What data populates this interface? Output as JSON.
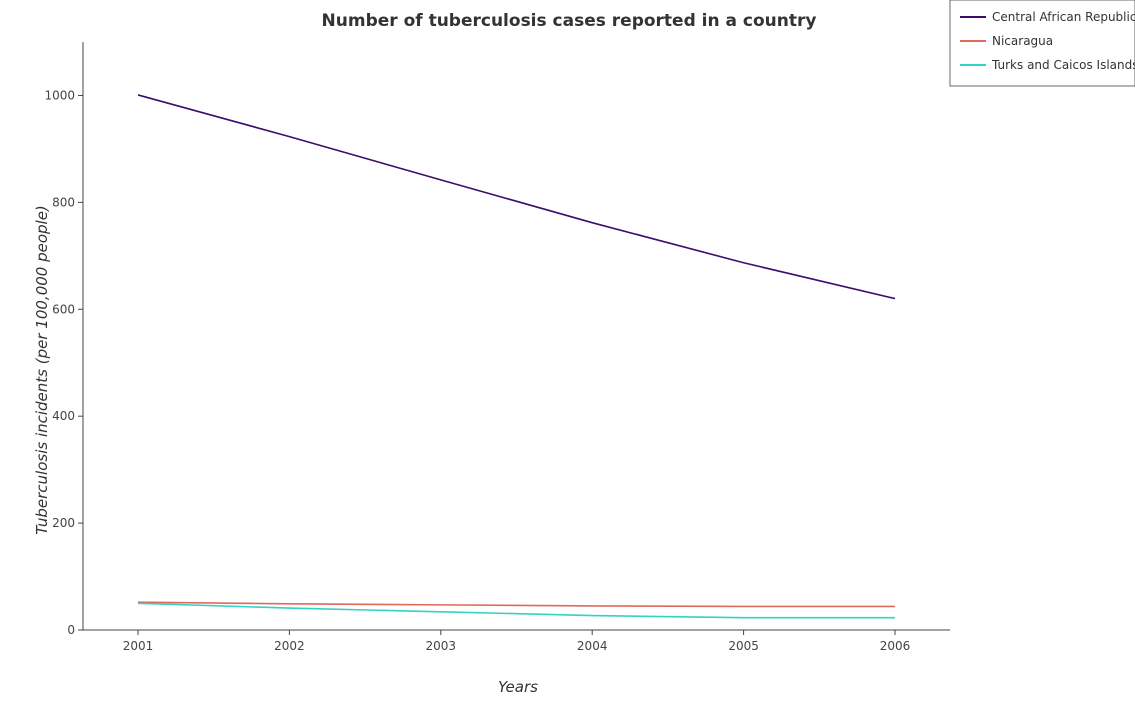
{
  "chart_data": {
    "type": "line",
    "title": "Number of tuberculosis cases reported in a country",
    "xlabel": "Years",
    "ylabel": "Tuberculosis incidents (per 100,000 people)",
    "categories": [
      "2001",
      "2002",
      "2003",
      "2004",
      "2005",
      "2006"
    ],
    "ylim": [
      0,
      1100
    ],
    "yticks": [
      0,
      200,
      400,
      600,
      800,
      1000
    ],
    "grid": false,
    "legend_position": "top-right",
    "series": [
      {
        "name": "Central African Republic",
        "color": "#3d0d6e",
        "values": [
          1001,
          923,
          842,
          762,
          687,
          620
        ]
      },
      {
        "name": "Nicaragua",
        "color": "#e06a5a",
        "values": [
          52,
          49,
          47,
          45,
          44,
          44
        ]
      },
      {
        "name": "Turks and Caicos Islands",
        "color": "#34d1c5",
        "values": [
          50,
          41,
          34,
          27,
          23,
          23
        ]
      }
    ]
  }
}
